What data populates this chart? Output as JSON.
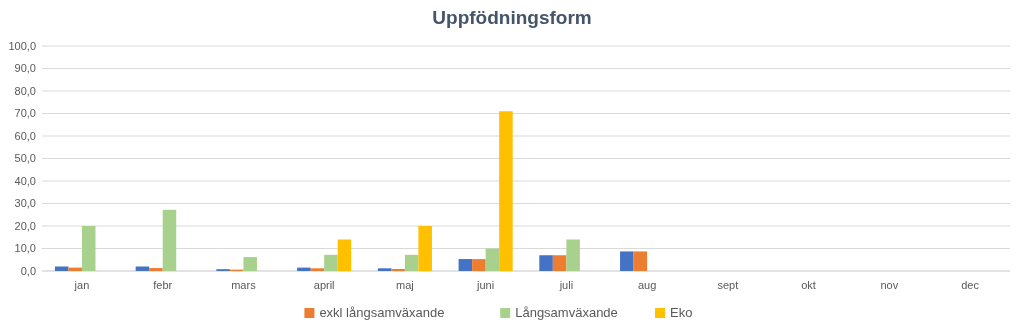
{
  "chart_data": {
    "type": "bar",
    "title": "Uppfödningsform",
    "categories": [
      "jan",
      "febr",
      "mars",
      "april",
      "maj",
      "juni",
      "juli",
      "aug",
      "sept",
      "okt",
      "nov",
      "dec"
    ],
    "series": [
      {
        "color": "#4472c4",
        "values": [
          2,
          2,
          0.8,
          1.5,
          1.2,
          5.3,
          7,
          8.7,
          null,
          null,
          null,
          null
        ]
      },
      {
        "name": "exkl långsamväxande",
        "color": "#ed7d31",
        "values": [
          1.5,
          1.3,
          0.6,
          1.2,
          0.9,
          5.3,
          7,
          8.7,
          null,
          null,
          null,
          null
        ]
      },
      {
        "name": "Långsamväxande",
        "color": "#a9d18e",
        "values": [
          20,
          27.2,
          6.2,
          7.2,
          7.2,
          10,
          14,
          null,
          null,
          null,
          null,
          null
        ]
      },
      {
        "name": "Eko",
        "color": "#ffc000",
        "values": [
          null,
          null,
          null,
          14,
          20,
          71,
          null,
          null,
          null,
          null,
          null,
          null
        ]
      }
    ],
    "ylim": [
      0,
      100
    ],
    "yticks": [
      {
        "value": 0,
        "label": "0,0"
      },
      {
        "value": 10,
        "label": "10,0"
      },
      {
        "value": 20,
        "label": "20,0"
      },
      {
        "value": 30,
        "label": "30,0"
      },
      {
        "value": 40,
        "label": "40,0"
      },
      {
        "value": 50,
        "label": "50,0"
      },
      {
        "value": 60,
        "label": "60,0"
      },
      {
        "value": 70,
        "label": "70,0"
      },
      {
        "value": 80,
        "label": "80,0"
      },
      {
        "value": 90,
        "label": "90,0"
      },
      {
        "value": 100,
        "label": "100,0"
      }
    ],
    "grid": "y",
    "legend": "bottom"
  }
}
